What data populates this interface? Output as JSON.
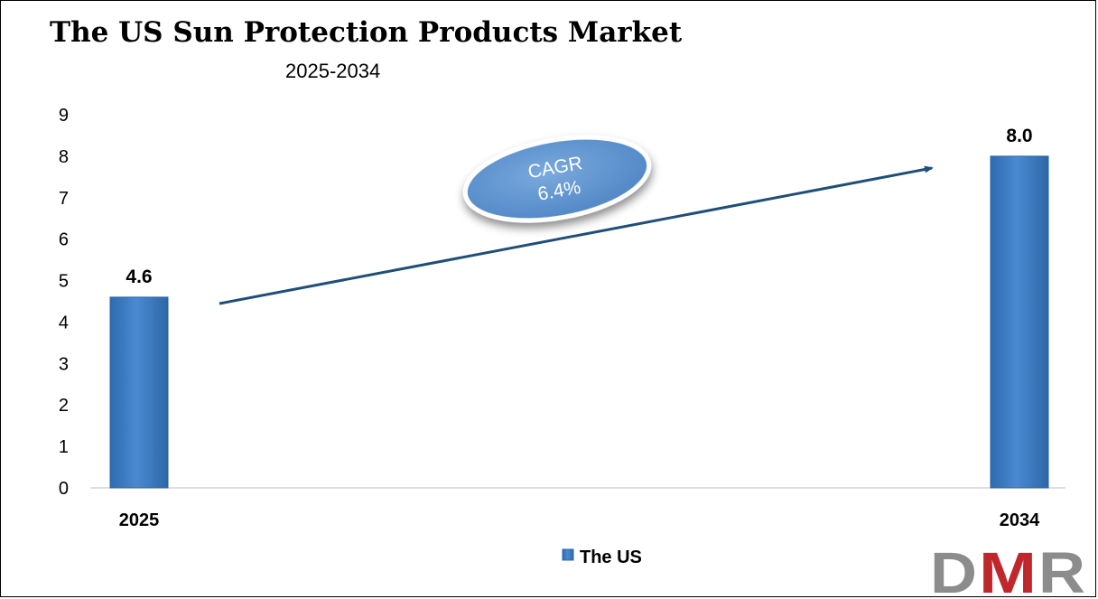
{
  "chart_data": {
    "type": "bar",
    "title": "The US Sun Protection Products Market",
    "subtitle": "2025-2034",
    "categories": [
      "2025",
      "2034"
    ],
    "series": [
      {
        "name": "The US",
        "values": [
          4.6,
          8.0
        ],
        "color": "#3f7fc4"
      }
    ],
    "data_labels": [
      "4.6",
      "8.0"
    ],
    "y_ticks": [
      "0",
      "1",
      "2",
      "3",
      "4",
      "5",
      "6",
      "7",
      "8",
      "9"
    ],
    "ylim": [
      0,
      9
    ],
    "grid": false,
    "legend": {
      "position": "bottom",
      "entries": [
        "The US"
      ]
    },
    "annotation": {
      "line1": "CAGR",
      "line2": "6.4%"
    }
  },
  "logo": {
    "text": "DMR",
    "colors": [
      "#8c8c8c",
      "#c0272d",
      "#8c8c8c"
    ]
  }
}
